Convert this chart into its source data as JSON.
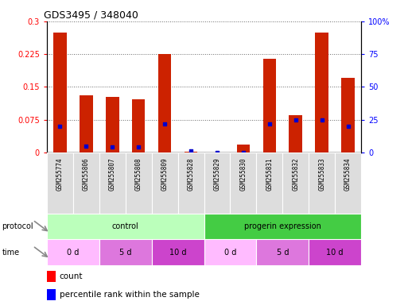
{
  "title": "GDS3495 / 348040",
  "samples": [
    "GSM255774",
    "GSM255806",
    "GSM255807",
    "GSM255808",
    "GSM255809",
    "GSM255828",
    "GSM255829",
    "GSM255830",
    "GSM255831",
    "GSM255832",
    "GSM255833",
    "GSM255834"
  ],
  "count_values": [
    0.275,
    0.13,
    0.128,
    0.122,
    0.225,
    0.002,
    0.0,
    0.018,
    0.215,
    0.085,
    0.275,
    0.17
  ],
  "pct_right_vals": [
    20,
    5,
    4,
    4,
    22,
    1,
    0,
    0,
    22,
    25,
    25,
    20
  ],
  "ylim_left": [
    0,
    0.3
  ],
  "ylim_right": [
    0,
    100
  ],
  "yticks_left": [
    0,
    0.075,
    0.15,
    0.225,
    0.3
  ],
  "ytick_labels_left": [
    "0",
    "0.075",
    "0.15",
    "0.225",
    "0.3"
  ],
  "yticks_right": [
    0,
    25,
    50,
    75,
    100
  ],
  "ytick_labels_right": [
    "0",
    "25",
    "50",
    "75",
    "100%"
  ],
  "bar_color": "#cc2200",
  "blue_color": "#0000cc",
  "protocol_groups": [
    {
      "label": "control",
      "xstart": 0,
      "xend": 6,
      "color": "#bbffbb"
    },
    {
      "label": "progerin expression",
      "xstart": 6,
      "xend": 12,
      "color": "#44cc44"
    }
  ],
  "time_groups": [
    {
      "label": "0 d",
      "xstart": 0,
      "xend": 2,
      "color": "#ffbbff"
    },
    {
      "label": "5 d",
      "xstart": 2,
      "xend": 4,
      "color": "#dd77dd"
    },
    {
      "label": "10 d",
      "xstart": 4,
      "xend": 6,
      "color": "#cc44cc"
    },
    {
      "label": "0 d",
      "xstart": 6,
      "xend": 8,
      "color": "#ffbbff"
    },
    {
      "label": "5 d",
      "xstart": 8,
      "xend": 10,
      "color": "#dd77dd"
    },
    {
      "label": "10 d",
      "xstart": 10,
      "xend": 12,
      "color": "#cc44cc"
    }
  ],
  "fig_bg": "#ffffff",
  "sample_box_color": "#dddddd",
  "grid_color": "#666666"
}
